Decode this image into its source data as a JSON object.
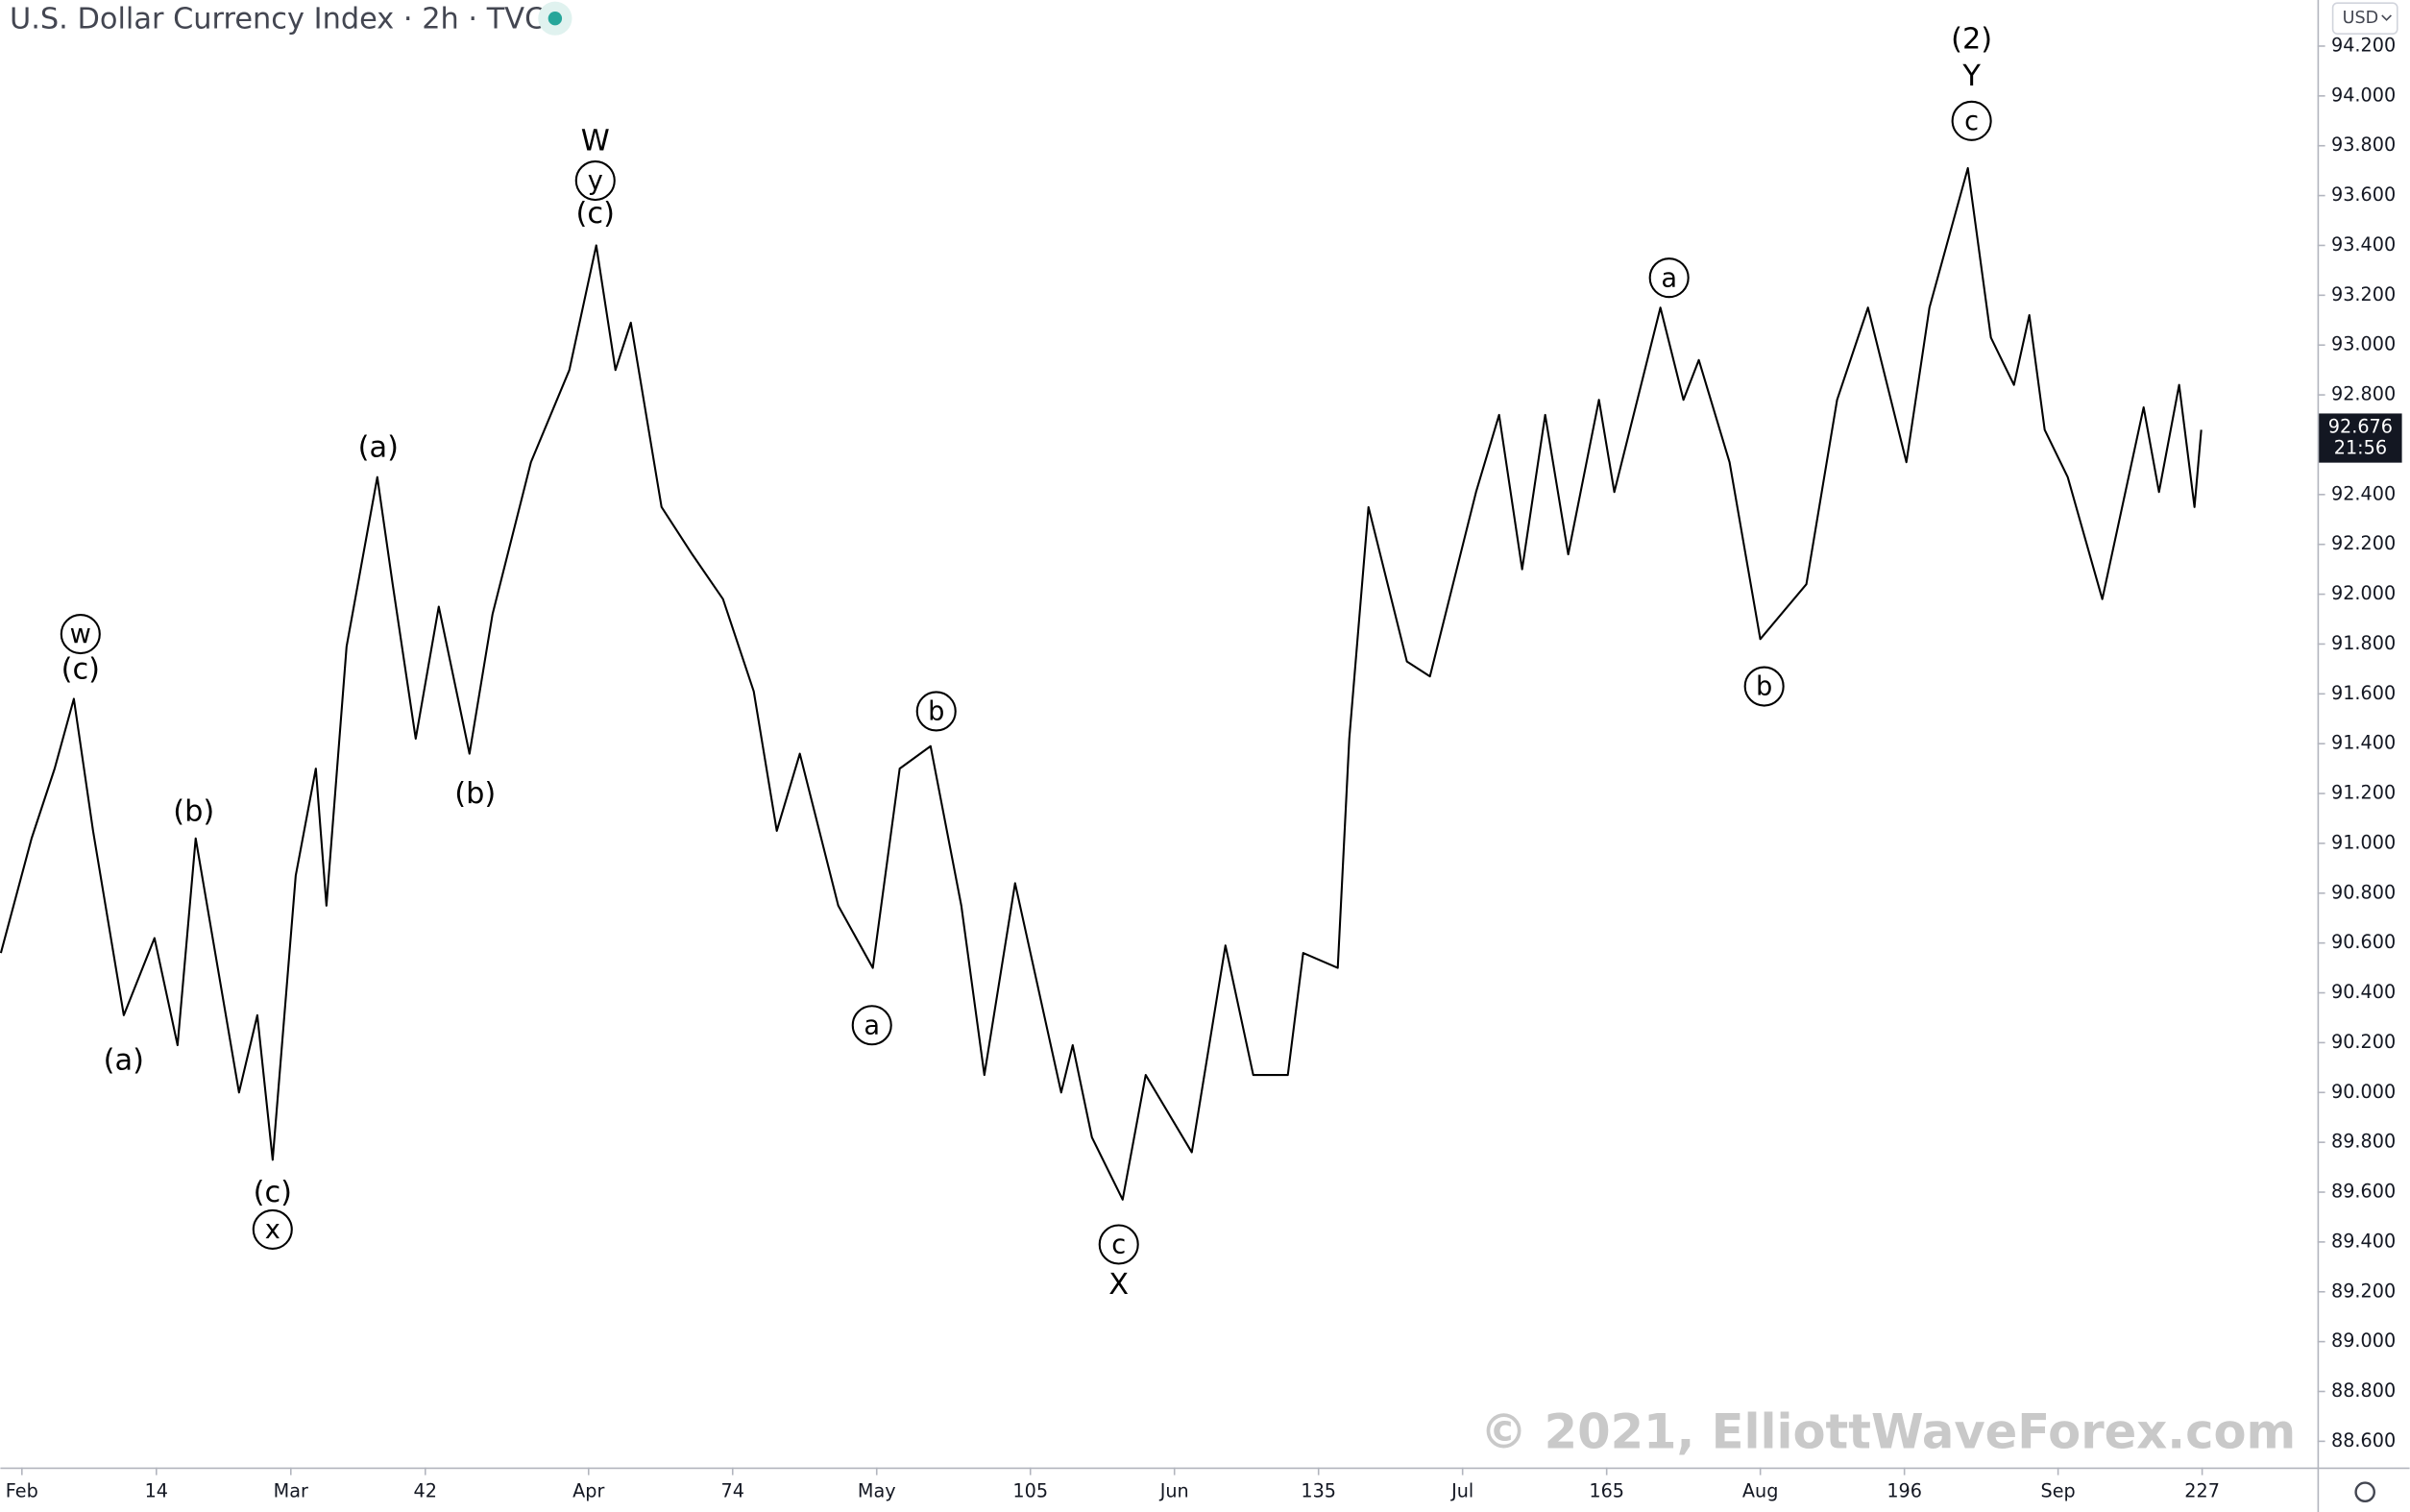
{
  "chart_data": {
    "type": "line",
    "title": "U.S. Dollar Currency Index · 2h · TVC",
    "currency": "USD",
    "last_price": 92.676,
    "countdown": "21:56",
    "watermark": "© 2021, ElliottWaveForex.com",
    "grid": false,
    "xlim": [
      -2.24,
      239
    ],
    "ylim": [
      88.495,
      94.385
    ],
    "xticks": [
      {
        "value": 0,
        "label": "Feb"
      },
      14,
      {
        "value": 28,
        "label": "Mar"
      },
      42,
      {
        "value": 59,
        "label": "Apr"
      },
      74,
      {
        "value": 89,
        "label": "May"
      },
      105,
      {
        "value": 120,
        "label": "Jun"
      },
      135,
      {
        "value": 150,
        "label": "Jul"
      },
      165,
      {
        "value": 181,
        "label": "Aug"
      },
      196,
      {
        "value": 212,
        "label": "Sep"
      },
      227
    ],
    "yticks": [
      {
        "value": 88.6,
        "label": "88.600"
      },
      {
        "value": 88.8,
        "label": "88.800"
      },
      {
        "value": 89.0,
        "label": "89.000"
      },
      {
        "value": 89.2,
        "label": "89.200"
      },
      {
        "value": 89.4,
        "label": "89.400"
      },
      {
        "value": 89.6,
        "label": "89.600"
      },
      {
        "value": 89.8,
        "label": "89.800"
      },
      {
        "value": 90.0,
        "label": "90.000"
      },
      {
        "value": 90.2,
        "label": "90.200"
      },
      {
        "value": 90.4,
        "label": "90.400"
      },
      {
        "value": 90.6,
        "label": "90.600"
      },
      {
        "value": 90.8,
        "label": "90.800"
      },
      {
        "value": 91.0,
        "label": "91.000"
      },
      {
        "value": 91.2,
        "label": "91.200"
      },
      {
        "value": 91.4,
        "label": "91.400"
      },
      {
        "value": 91.6,
        "label": "91.600"
      },
      {
        "value": 91.8,
        "label": "91.800"
      },
      {
        "value": 92.0,
        "label": "92.000"
      },
      {
        "value": 92.2,
        "label": "92.200"
      },
      {
        "value": 92.4,
        "label": "92.400"
      },
      {
        "value": 92.8,
        "label": "92.800"
      },
      {
        "value": 93.0,
        "label": "93.000"
      },
      {
        "value": 93.2,
        "label": "93.200"
      },
      {
        "value": 93.4,
        "label": "93.400"
      },
      {
        "value": 93.6,
        "label": "93.600"
      },
      {
        "value": 93.8,
        "label": "93.800"
      },
      {
        "value": 94.0,
        "label": "94.000"
      },
      {
        "value": 94.2,
        "label": "94.200"
      }
    ],
    "series": [
      {
        "color": "#000000",
        "x": [
          -2.2,
          1.0,
          3.4,
          5.4,
          7.4,
          10.6,
          13.8,
          16.2,
          18.1,
          22.6,
          24.5,
          26.1,
          28.5,
          30.6,
          31.7,
          33.8,
          37.0,
          38.6,
          41.0,
          43.4,
          46.6,
          49.0,
          53.0,
          57.0,
          59.8,
          61.8,
          63.4,
          66.6,
          69.8,
          73.0,
          76.2,
          78.6,
          81.0,
          85.0,
          88.6,
          91.4,
          94.6,
          97.8,
          100.2,
          103.4,
          108.2,
          109.4,
          111.4,
          114.6,
          117.0,
          121.8,
          125.3,
          128.2,
          131.8,
          133.4,
          137.0,
          138.2,
          140.2,
          144.2,
          146.6,
          151.4,
          153.8,
          156.2,
          158.6,
          161.0,
          164.2,
          165.8,
          170.6,
          173.0,
          174.6,
          177.8,
          181.0,
          185.8,
          189.0,
          192.2,
          196.2,
          198.6,
          202.6,
          205.0,
          207.4,
          209.0,
          210.6,
          213.0,
          216.6,
          220.9,
          222.5,
          224.6,
          226.2,
          226.9
        ],
        "values": [
          90.56,
          91.02,
          91.3,
          91.58,
          91.05,
          90.31,
          90.62,
          90.19,
          91.02,
          90.0,
          90.31,
          89.73,
          90.87,
          91.3,
          90.75,
          91.79,
          92.47,
          92.04,
          91.42,
          91.95,
          91.36,
          91.92,
          92.53,
          92.9,
          93.4,
          92.9,
          93.09,
          92.35,
          92.16,
          91.98,
          91.61,
          91.05,
          91.36,
          90.75,
          90.5,
          91.3,
          91.39,
          90.75,
          90.07,
          90.84,
          90.0,
          90.19,
          89.82,
          89.57,
          90.07,
          89.76,
          90.59,
          90.07,
          90.07,
          90.56,
          90.5,
          91.42,
          92.35,
          91.73,
          91.67,
          92.41,
          92.72,
          92.1,
          92.72,
          92.16,
          92.78,
          92.41,
          93.15,
          92.78,
          92.94,
          92.53,
          91.82,
          92.04,
          92.78,
          93.15,
          92.53,
          93.15,
          93.71,
          93.03,
          92.84,
          93.12,
          92.66,
          92.47,
          91.98,
          92.75,
          92.41,
          92.84,
          92.35,
          92.66
        ]
      }
    ],
    "annotations": [
      {
        "text": "w",
        "x": 6.1,
        "y": 91.84,
        "circled": true
      },
      {
        "text": "(c)",
        "x": 6.1,
        "y": 91.7,
        "circled": false
      },
      {
        "text": "(a)",
        "x": 10.6,
        "y": 90.13,
        "circled": false
      },
      {
        "text": "(b)",
        "x": 17.9,
        "y": 91.13,
        "circled": false
      },
      {
        "text": "(c)",
        "x": 26.1,
        "y": 89.6,
        "circled": false
      },
      {
        "text": "x",
        "x": 26.1,
        "y": 89.45,
        "circled": true
      },
      {
        "text": "(a)",
        "x": 37.1,
        "y": 92.59,
        "circled": false
      },
      {
        "text": "(b)",
        "x": 47.2,
        "y": 91.2,
        "circled": false
      },
      {
        "text": "W",
        "x": 59.7,
        "y": 93.82,
        "circled": false
      },
      {
        "text": "y",
        "x": 59.7,
        "y": 93.66,
        "circled": true
      },
      {
        "text": "(c)",
        "x": 59.7,
        "y": 93.53,
        "circled": false
      },
      {
        "text": "a",
        "x": 88.5,
        "y": 90.27,
        "circled": true
      },
      {
        "text": "b",
        "x": 95.2,
        "y": 91.53,
        "circled": true
      },
      {
        "text": "c",
        "x": 114.2,
        "y": 89.39,
        "circled": true
      },
      {
        "text": "X",
        "x": 114.2,
        "y": 89.23,
        "circled": false
      },
      {
        "text": "a",
        "x": 171.5,
        "y": 93.27,
        "circled": true
      },
      {
        "text": "b",
        "x": 181.4,
        "y": 91.63,
        "circled": true
      },
      {
        "text": "(2)",
        "x": 203.0,
        "y": 94.23,
        "circled": false
      },
      {
        "text": "Y",
        "x": 203.0,
        "y": 94.08,
        "circled": false
      },
      {
        "text": "c",
        "x": 203.0,
        "y": 93.9,
        "circled": true
      }
    ]
  }
}
